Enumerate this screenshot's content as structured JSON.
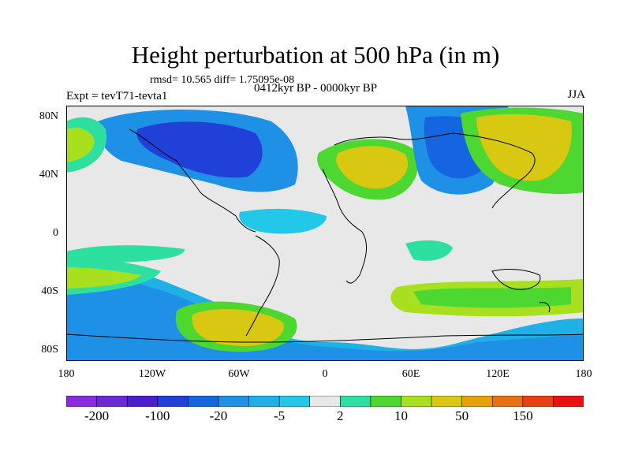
{
  "figure": {
    "title": "Height perturbation at 500 hPa (in m)",
    "stats": "rmsd= 10.565 diff= 1.75095e-08",
    "period": "0412kyr BP - 0000kyr BP",
    "experiment": "Expt = tevT71-tevta1",
    "season": "JJA"
  },
  "axes": {
    "lat_labels": [
      "80N",
      "40N",
      "0",
      "40S",
      "80S"
    ],
    "lon_labels": [
      "180",
      "120W",
      "60W",
      "0",
      "60E",
      "120E",
      "180"
    ]
  },
  "colorbar": {
    "colors": [
      "#8a2be2",
      "#6a28d8",
      "#4b1fd0",
      "#2040d8",
      "#1565e0",
      "#1e90e6",
      "#1fb0e8",
      "#22c8e8",
      "#e8e8e8",
      "#2ee0a0",
      "#4cd830",
      "#a8e020",
      "#d8c812",
      "#e8a008",
      "#e87010",
      "#e84010",
      "#e81010"
    ],
    "labels": [
      "-200",
      "-100",
      "-20",
      "-5",
      "2",
      "10",
      "50",
      "150"
    ],
    "label_after_index": [
      0,
      2,
      4,
      6,
      8,
      10,
      12,
      14
    ]
  },
  "field": {
    "levels": [
      "negative strong",
      "negative",
      "near zero",
      "positive",
      "positive strong"
    ],
    "background_color": "#e8e8e8",
    "land_outline_color": "#000000"
  }
}
